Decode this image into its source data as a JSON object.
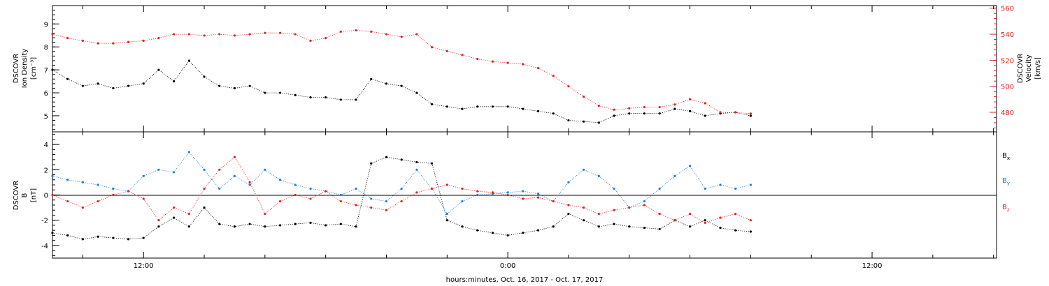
{
  "xaxis": {
    "title": "hours:minutes, Oct. 16, 2017 - Oct. 17, 2017",
    "range_hours": [
      9,
      40.1
    ],
    "ticks": [
      {
        "h": 12,
        "label": "12:00"
      },
      {
        "h": 24,
        "label": "0:00"
      },
      {
        "h": 36,
        "label": "12:00"
      }
    ],
    "minor_step_hours": 2
  },
  "panel_top": {
    "left_label_lines": [
      "DSCOVR",
      "Ion Density"
    ],
    "left_unit": "[cm⁻³]",
    "right_label_lines": [
      "DSCOVR",
      "Velocity"
    ],
    "right_unit": "[km/s]",
    "left_ticks": [
      "5",
      "6",
      "7",
      "8",
      "9"
    ],
    "right_ticks": [
      "480",
      "500",
      "520",
      "540",
      "560"
    ]
  },
  "panel_bottom": {
    "left_label_lines": [
      "DSCOVR",
      "B"
    ],
    "left_unit": "[nT]",
    "left_ticks": [
      "-4",
      "-2",
      "0",
      "2",
      "4"
    ],
    "legend": [
      {
        "text": "B",
        "sub": "x",
        "color": "#000000"
      },
      {
        "text": "B",
        "sub": "y",
        "color": "#1f7fd6"
      },
      {
        "text": "B",
        "sub": "z",
        "color": "#e02020"
      }
    ]
  },
  "chart_data": [
    {
      "type": "scatter",
      "title": "",
      "ylabel": "DSCOVR Ion Density [cm-3]",
      "ylim": [
        4.3,
        9.8
      ],
      "y2label": "DSCOVR Velocity [km/s]",
      "y2lim": [
        465,
        562
      ],
      "x_units": "hours since 2017-10-16 00:00",
      "series": [
        {
          "name": "Ion Density",
          "color": "#000000",
          "axis": "left",
          "x": [
            9.0,
            9.5,
            10.0,
            10.5,
            11.0,
            11.5,
            12.0,
            12.5,
            13.0,
            13.5,
            14.0,
            14.5,
            15.0,
            15.5,
            16.0,
            16.5,
            17.0,
            17.5,
            18.0,
            18.5,
            19.0,
            19.5,
            20.0,
            20.5,
            21.0,
            21.5,
            22.0,
            22.5,
            23.0,
            23.5,
            24.0,
            24.5,
            25.0,
            25.5,
            26.0,
            26.5,
            27.0,
            27.5,
            28.0,
            28.5,
            29.0,
            29.5,
            30.0,
            30.5,
            31.0,
            31.5,
            32.0
          ],
          "values": [
            7.0,
            6.6,
            6.3,
            6.4,
            6.2,
            6.3,
            6.4,
            7.0,
            6.5,
            7.4,
            6.7,
            6.3,
            6.2,
            6.3,
            6.0,
            6.0,
            5.9,
            5.8,
            5.8,
            5.7,
            5.7,
            6.6,
            6.4,
            6.3,
            6.0,
            5.5,
            5.4,
            5.3,
            5.4,
            5.4,
            5.4,
            5.3,
            5.2,
            5.1,
            4.8,
            4.75,
            4.7,
            5.0,
            5.1,
            5.1,
            5.1,
            5.3,
            5.2,
            5.0,
            5.1,
            5.15,
            5.0
          ]
        },
        {
          "name": "Velocity",
          "color": "#e02020",
          "axis": "right",
          "x": [
            9.0,
            9.5,
            10.0,
            10.5,
            11.0,
            11.5,
            12.0,
            12.5,
            13.0,
            13.5,
            14.0,
            14.5,
            15.0,
            15.5,
            16.0,
            16.5,
            17.0,
            17.5,
            18.0,
            18.5,
            19.0,
            19.5,
            20.0,
            20.5,
            21.0,
            21.5,
            22.0,
            22.5,
            23.0,
            23.5,
            24.0,
            24.5,
            25.0,
            25.5,
            26.0,
            26.5,
            27.0,
            27.5,
            28.0,
            28.5,
            29.0,
            29.5,
            30.0,
            30.5,
            31.0,
            31.5,
            32.0
          ],
          "values": [
            540,
            537,
            535,
            533,
            533,
            534,
            535,
            537,
            540,
            540,
            539,
            540,
            539,
            540,
            541,
            541,
            540,
            535,
            537,
            542,
            543,
            542,
            540,
            538,
            540,
            530,
            527,
            524,
            521,
            519,
            518,
            517,
            514,
            508,
            500,
            492,
            485,
            482,
            483,
            484,
            484,
            486,
            490,
            487,
            480,
            480,
            479
          ]
        }
      ]
    },
    {
      "type": "scatter",
      "title": "",
      "ylabel": "DSCOVR B [nT]",
      "ylim": [
        -5,
        5
      ],
      "x_units": "hours since 2017-10-16 00:00",
      "series": [
        {
          "name": "Bx",
          "color": "#000000",
          "x": [
            9.0,
            9.5,
            10.0,
            10.5,
            11.0,
            11.5,
            12.0,
            12.5,
            13.0,
            13.5,
            14.0,
            14.5,
            15.0,
            15.5,
            16.0,
            16.5,
            17.0,
            17.5,
            18.0,
            18.5,
            19.0,
            19.5,
            20.0,
            20.5,
            21.0,
            21.5,
            22.0,
            22.5,
            23.0,
            23.5,
            24.0,
            24.5,
            25.0,
            25.5,
            26.0,
            26.5,
            27.0,
            27.5,
            28.0,
            28.5,
            29.0,
            29.5,
            30.0,
            30.5,
            31.0,
            31.5,
            32.0
          ],
          "values": [
            -3.0,
            -3.2,
            -3.5,
            -3.3,
            -3.4,
            -3.5,
            -3.4,
            -2.5,
            -1.8,
            -2.5,
            -1.0,
            -2.3,
            -2.5,
            -2.3,
            -2.5,
            -2.4,
            -2.3,
            -2.2,
            -2.4,
            -2.3,
            -2.5,
            2.5,
            3.0,
            2.8,
            2.6,
            2.5,
            -2.0,
            -2.5,
            -2.8,
            -3.0,
            -3.2,
            -3.0,
            -2.8,
            -2.5,
            -1.5,
            -2.0,
            -2.5,
            -2.3,
            -2.5,
            -2.6,
            -2.7,
            -2.0,
            -2.5,
            -2.0,
            -2.6,
            -2.8,
            -2.9
          ]
        },
        {
          "name": "By",
          "color": "#1f7fd6",
          "x": [
            9.0,
            9.5,
            10.0,
            10.5,
            11.0,
            11.5,
            12.0,
            12.5,
            13.0,
            13.5,
            14.0,
            14.5,
            15.0,
            15.5,
            16.0,
            16.5,
            17.0,
            17.5,
            18.0,
            18.5,
            19.0,
            19.5,
            20.0,
            20.5,
            21.0,
            21.5,
            22.0,
            22.5,
            23.0,
            23.5,
            24.0,
            24.5,
            25.0,
            25.5,
            26.0,
            26.5,
            27.0,
            27.5,
            28.0,
            28.5,
            29.0,
            29.5,
            30.0,
            30.5,
            31.0,
            31.5,
            32.0
          ],
          "values": [
            1.5,
            1.2,
            1.0,
            0.8,
            0.5,
            0.3,
            1.5,
            2.0,
            1.8,
            3.4,
            2.0,
            0.5,
            1.5,
            0.8,
            2.0,
            1.2,
            0.8,
            0.5,
            0.3,
            0.0,
            0.5,
            -0.3,
            -0.5,
            0.5,
            2.0,
            0.5,
            -1.5,
            -0.5,
            0.0,
            0.1,
            0.2,
            0.3,
            0.1,
            -0.5,
            1.0,
            2.0,
            1.5,
            0.5,
            -1.0,
            -0.5,
            0.5,
            1.5,
            2.3,
            0.5,
            0.8,
            0.5,
            0.8
          ]
        },
        {
          "name": "Bz",
          "color": "#e02020",
          "x": [
            9.0,
            9.5,
            10.0,
            10.5,
            11.0,
            11.5,
            12.0,
            12.5,
            13.0,
            13.5,
            14.0,
            14.5,
            15.0,
            15.5,
            16.0,
            16.5,
            17.0,
            17.5,
            18.0,
            18.5,
            19.0,
            19.5,
            20.0,
            20.5,
            21.0,
            21.5,
            22.0,
            22.5,
            23.0,
            23.5,
            24.0,
            24.5,
            25.0,
            25.5,
            26.0,
            26.5,
            27.0,
            27.5,
            28.0,
            28.5,
            29.0,
            29.5,
            30.0,
            30.5,
            31.0,
            31.5,
            32.0
          ],
          "values": [
            0.0,
            -0.5,
            -1.0,
            -0.5,
            0.0,
            0.3,
            -0.3,
            -2.0,
            -1.0,
            -1.5,
            0.5,
            2.0,
            3.0,
            1.0,
            -1.5,
            -0.5,
            0.0,
            -0.3,
            0.3,
            -0.5,
            -0.8,
            -1.0,
            -1.2,
            -0.5,
            0.2,
            0.5,
            0.8,
            0.5,
            0.3,
            0.2,
            0.0,
            -0.3,
            -0.2,
            -0.5,
            -0.8,
            -1.0,
            -1.5,
            -1.2,
            -1.0,
            -0.8,
            -1.5,
            -2.0,
            -1.5,
            -2.2,
            -1.8,
            -1.5,
            -2.0
          ]
        }
      ]
    }
  ]
}
